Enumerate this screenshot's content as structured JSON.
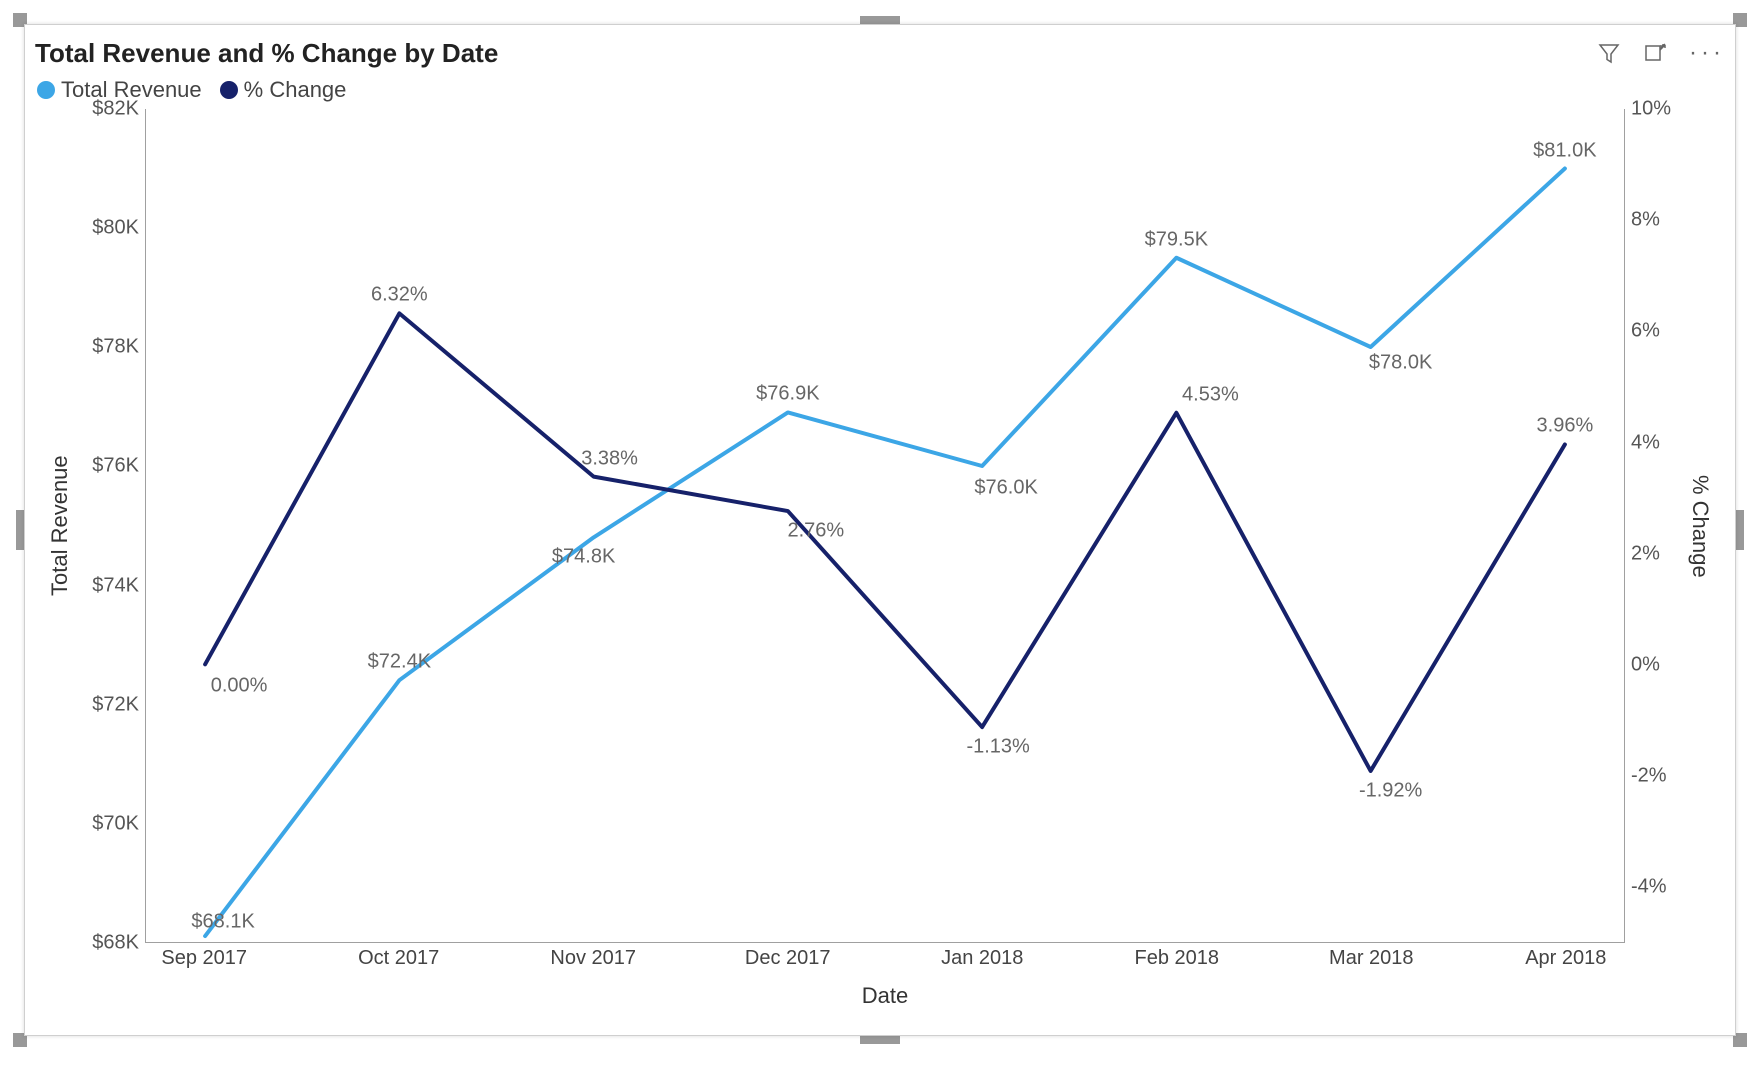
{
  "chart": {
    "type": "line-dual-axis",
    "title": "Total Revenue and % Change by Date",
    "background_color": "#ffffff",
    "border_color": "#cfcfcf",
    "handle_color": "#999999",
    "label_color": "#666666",
    "text_color": "#333333",
    "title_fontsize": 26,
    "axis_fontsize": 20,
    "legend_fontsize": 22,
    "line_width": 4,
    "x": {
      "title": "Date",
      "categories": [
        "Sep 2017",
        "Oct 2017",
        "Nov 2017",
        "Dec 2017",
        "Jan 2018",
        "Feb 2018",
        "Mar 2018",
        "Apr 2018"
      ]
    },
    "y_left": {
      "title": "Total Revenue",
      "min": 68,
      "max": 82,
      "tick_step": 2,
      "tick_format_prefix": "$",
      "tick_format_suffix": "K",
      "ticks": [
        "$68K",
        "$70K",
        "$72K",
        "$74K",
        "$76K",
        "$78K",
        "$80K",
        "$82K"
      ]
    },
    "y_right": {
      "title": "% Change",
      "min": -5,
      "max": 10,
      "tick_step": 2,
      "tick_format_suffix": "%",
      "ticks_at": [
        -4,
        -2,
        0,
        2,
        4,
        6,
        8,
        10
      ],
      "ticks": [
        "-4%",
        "-2%",
        "0%",
        "2%",
        "4%",
        "6%",
        "8%",
        "10%"
      ]
    },
    "series": [
      {
        "name": "Total Revenue",
        "axis": "left",
        "color": "#3ca6e6",
        "values": [
          68.1,
          72.4,
          74.8,
          76.9,
          76.0,
          79.5,
          78.0,
          81.0
        ],
        "labels": [
          "$68.1K",
          "$72.4K",
          "$74.8K",
          "$76.9K",
          "$76.0K",
          "$79.5K",
          "$78.0K",
          "$81.0K"
        ]
      },
      {
        "name": "% Change",
        "axis": "right",
        "color": "#16216a",
        "values": [
          0.0,
          6.32,
          3.38,
          2.76,
          -1.13,
          4.53,
          -1.92,
          3.96
        ],
        "labels": [
          "0.00%",
          "6.32%",
          "3.38%",
          "2.76%",
          "-1.13%",
          "4.53%",
          "-1.92%",
          "3.96%"
        ]
      }
    ],
    "toolbar": {
      "filter_icon": "filter",
      "focus_icon": "focus-mode",
      "more_icon": "more-options"
    }
  }
}
